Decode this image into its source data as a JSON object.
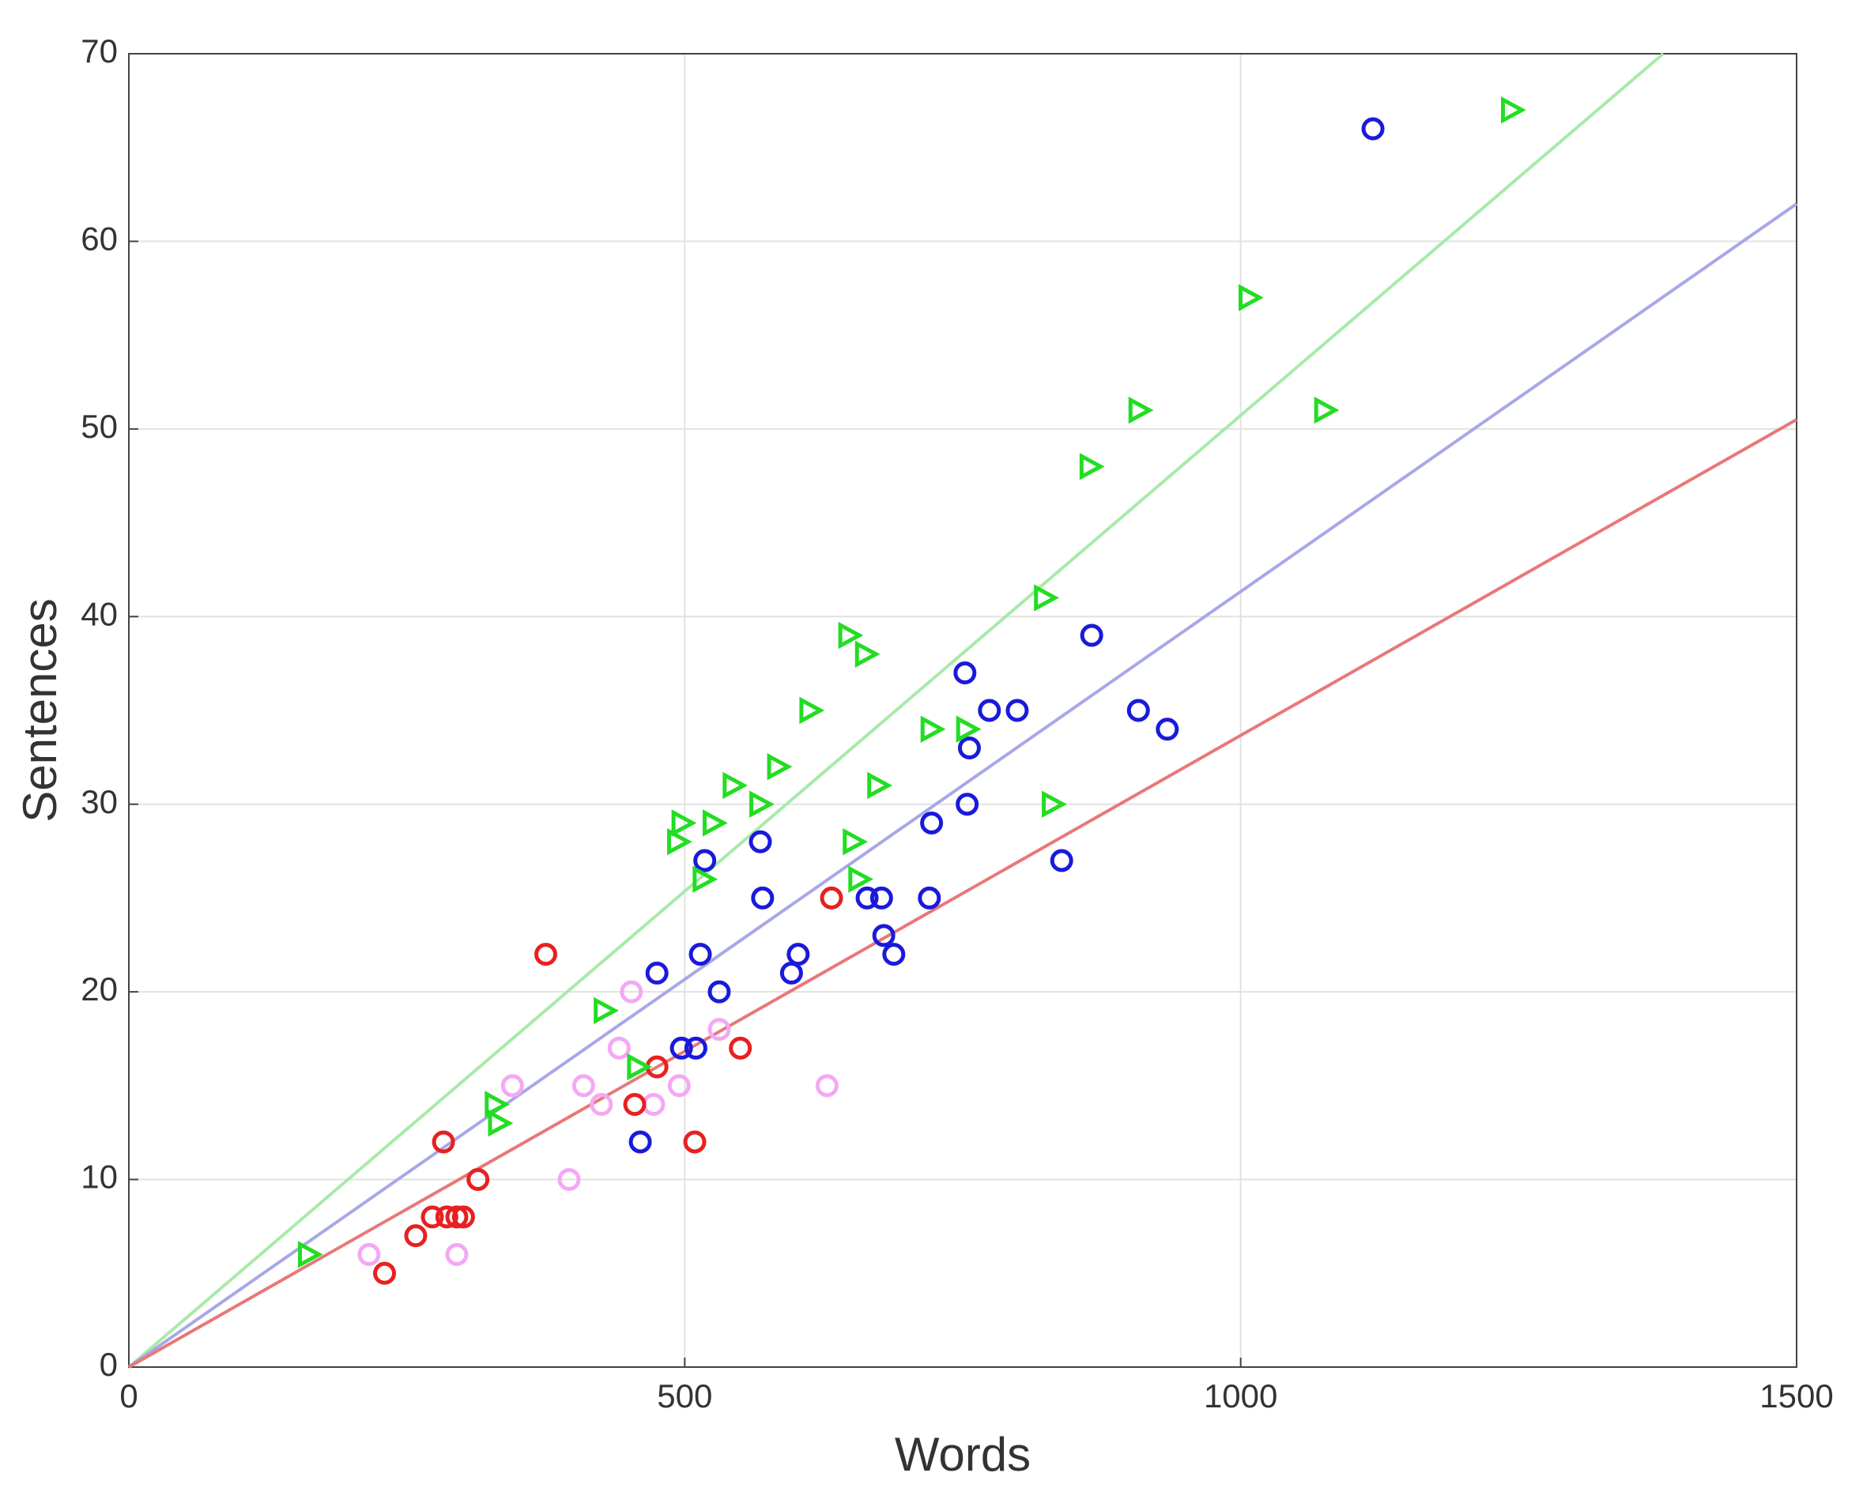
{
  "chart_data": {
    "type": "scatter",
    "xlabel": "Words",
    "ylabel": "Sentences",
    "xlim": [
      0,
      1500
    ],
    "ylim": [
      0,
      70
    ],
    "xticks": [
      0,
      500,
      1000,
      1500
    ],
    "yticks": [
      0,
      10,
      20,
      30,
      40,
      50,
      60,
      70
    ],
    "grid": true,
    "series": [
      {
        "color": "#f4a8f4",
        "marker": "circle",
        "x": [
          216,
          295,
          396,
          409,
          425,
          452,
          472,
          495,
          531,
          628,
          345,
          441
        ],
        "values": [
          6,
          6,
          10,
          15,
          14,
          20,
          14,
          15,
          18,
          15,
          15,
          17
        ]
      },
      {
        "color": "#e82020",
        "marker": "circle",
        "x": [
          230,
          258,
          273,
          283,
          286,
          295,
          301,
          314,
          375,
          455,
          475,
          509,
          550,
          632
        ],
        "values": [
          5,
          7,
          8,
          12,
          8,
          8,
          8,
          10,
          22,
          14,
          16,
          12,
          17,
          25
        ]
      },
      {
        "color": "#1a1adb",
        "marker": "circle",
        "x": [
          460,
          475,
          497,
          510,
          514,
          518,
          531,
          568,
          570,
          596,
          602,
          664,
          677,
          679,
          688,
          720,
          722,
          752,
          754,
          756,
          774,
          799,
          839,
          866,
          908,
          934,
          1119
        ],
        "values": [
          12,
          21,
          17,
          17,
          22,
          27,
          20,
          28,
          25,
          21,
          22,
          25,
          25,
          23,
          22,
          25,
          29,
          37,
          30,
          33,
          35,
          35,
          27,
          39,
          35,
          34,
          66
        ]
      },
      {
        "color": "#22dd22",
        "marker": "triangle",
        "x": [
          161,
          329,
          332,
          427,
          457,
          493,
          497,
          525,
          516,
          543,
          567,
          583,
          612,
          647,
          662,
          651,
          656,
          673,
          721,
          753,
          823,
          830,
          864,
          908,
          1007,
          1075,
          1243
        ],
        "values": [
          6,
          14,
          13,
          19,
          16,
          28,
          29,
          29,
          26,
          31,
          30,
          32,
          35,
          39,
          38,
          28,
          26,
          31,
          34,
          34,
          41,
          30,
          48,
          51,
          57,
          51,
          67
        ]
      }
    ],
    "fit_lines": [
      {
        "color": "#a8eaa8",
        "x": [
          0,
          1380
        ],
        "values": [
          0,
          70
        ]
      },
      {
        "color": "#a8a8e8",
        "x": [
          0,
          1500
        ],
        "values": [
          0,
          62
        ]
      },
      {
        "color": "#e87878",
        "x": [
          0,
          1500
        ],
        "values": [
          0,
          50.5
        ]
      }
    ]
  }
}
